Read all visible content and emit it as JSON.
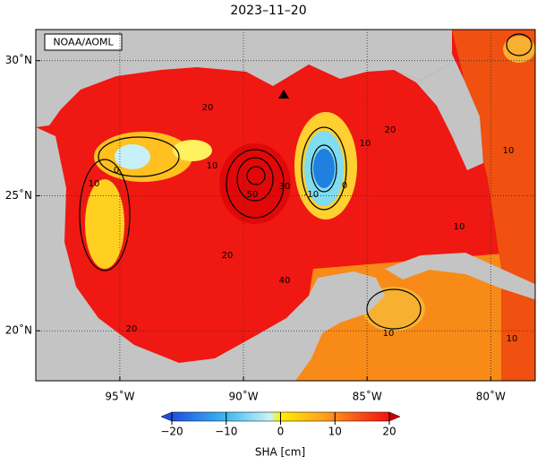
{
  "title": "2023–11–20",
  "credit": "NOAA/AOML",
  "map": {
    "xlim": [
      -98.4,
      -78.2
    ],
    "ylim": [
      18.15,
      31.15
    ],
    "xticks": [
      {
        "value": -95,
        "label": "95˚W"
      },
      {
        "value": -90,
        "label": "90˚W"
      },
      {
        "value": -85,
        "label": "85˚W"
      },
      {
        "value": -80,
        "label": "80˚W"
      }
    ],
    "yticks": [
      {
        "value": 30,
        "label": "30˚N"
      },
      {
        "value": 25,
        "label": "25˚N"
      },
      {
        "value": 20,
        "label": "20˚N"
      }
    ],
    "contour_labels": [
      "20",
      "0",
      "10",
      "10",
      "50",
      "30",
      "-10",
      "0",
      "10",
      "20",
      "20",
      "40",
      "20",
      "10",
      "10",
      "10",
      "10"
    ]
  },
  "colorbar": {
    "label": "SHA [cm]",
    "lim": [
      -20,
      20
    ],
    "ticks": [
      {
        "value": -20,
        "label": "−20"
      },
      {
        "value": -10,
        "label": "−10"
      },
      0,
      10,
      20
    ]
  }
}
